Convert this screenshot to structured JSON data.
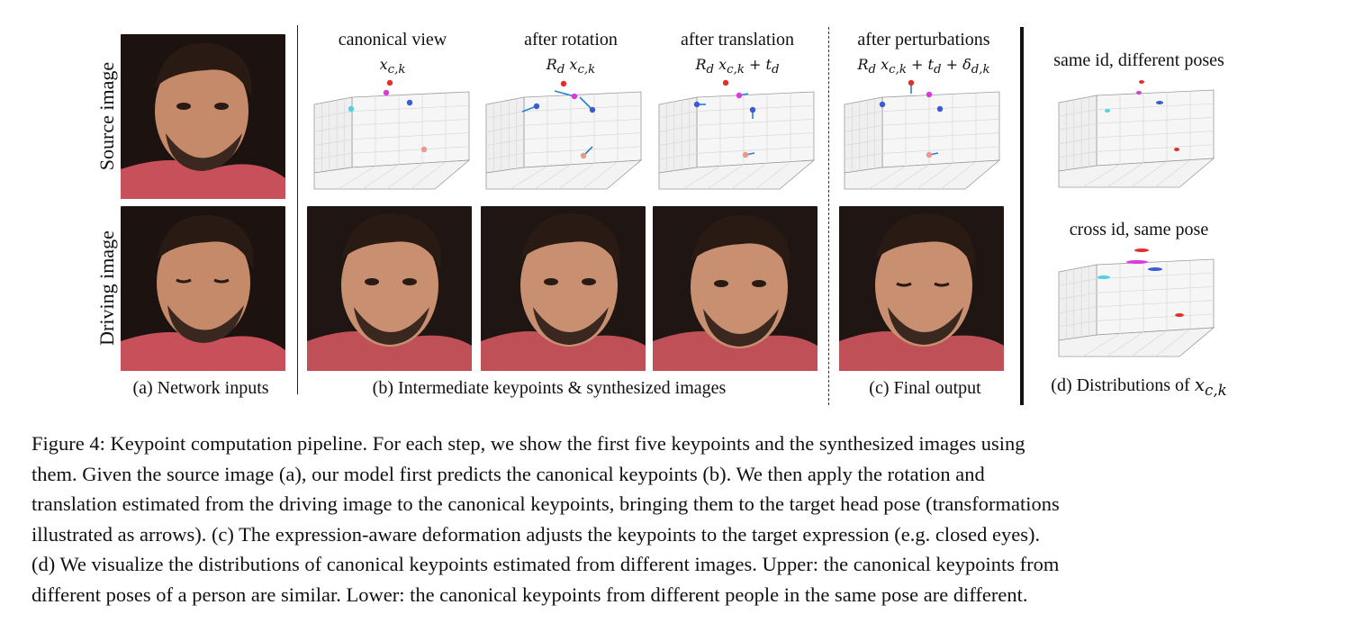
{
  "row_labels": {
    "source": "Source image",
    "driving": "Driving image"
  },
  "column_titles": {
    "canonical": "canonical view",
    "rotation": "after rotation",
    "translation": "after translation",
    "perturbations": "after perturbations",
    "same_id": "same id, different poses",
    "cross_id": "cross id, same pose"
  },
  "formulas": {
    "canonical": "x_{c,k}",
    "rotation": "R_d x_{c,k}",
    "translation": "R_d x_{c,k} + t_d",
    "perturbations": "R_d x_{c,k} + t_d + δ_{d,k}"
  },
  "panel_captions": {
    "a": "(a) Network inputs",
    "b": "(b) Intermediate keypoints & synthesized images",
    "c": "(c) Final output",
    "d_prefix": "(d) Distributions of"
  },
  "caption_lines": [
    "Figure 4: Keypoint computation pipeline. For each step, we show the first five keypoints and the synthesized images using",
    "them. Given the source image (a), our model first predicts the canonical keypoints (b). We then apply the rotation and",
    "translation estimated from the driving image to the canonical keypoints, bringing them to the target head pose (transformations",
    "illustrated as arrows). (c) The expression-aware deformation adjusts the keypoints to the target expression (e.g. closed eyes).",
    "(d) We visualize the distributions of canonical keypoints estimated from different images. Upper: the canonical keypoints from",
    "different poses of a person are similar. Lower: the canonical keypoints from different people in the same pose are different."
  ],
  "colors": {
    "kp_red": "#e0302a",
    "kp_magenta": "#d93ad9",
    "kp_blue": "#3b5bd6",
    "kp_cyan": "#4fd3e0",
    "kp_salmon": "#e89a90",
    "arrow": "#2a7fd4"
  }
}
